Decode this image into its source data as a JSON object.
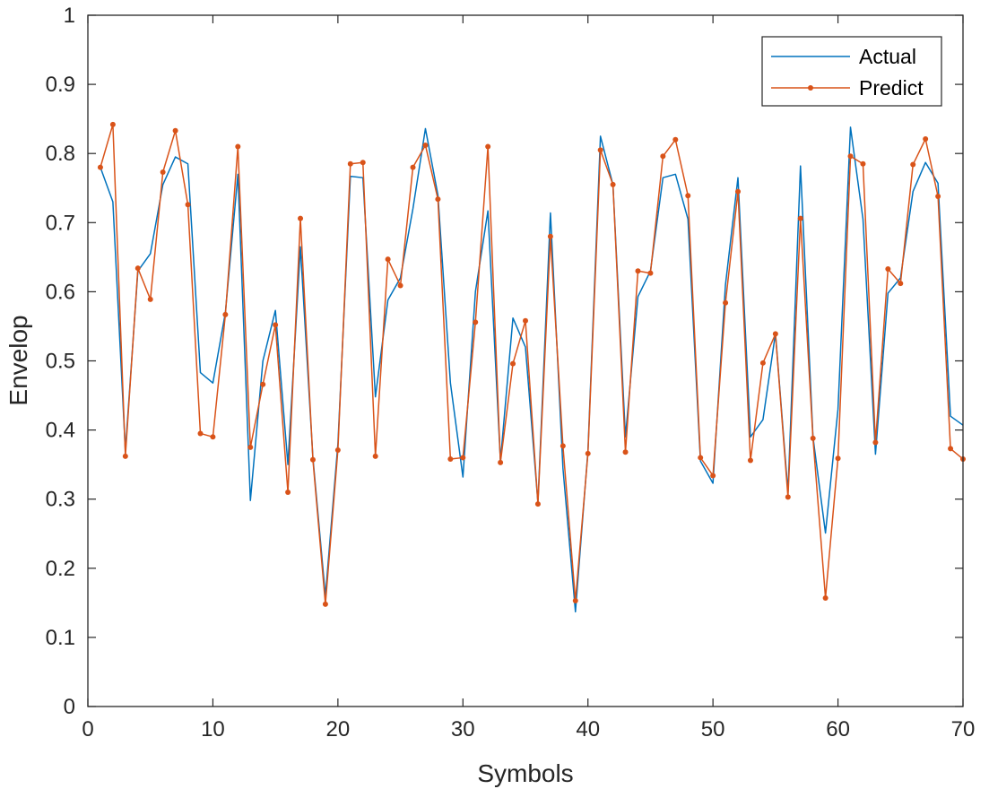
{
  "chart_data": {
    "type": "line",
    "title": "",
    "xlabel": "Symbols",
    "ylabel": "Envelop",
    "xlim": [
      0,
      70
    ],
    "ylim": [
      0,
      1
    ],
    "xticks": [
      0,
      10,
      20,
      30,
      40,
      50,
      60,
      70
    ],
    "yticks": [
      0,
      0.1,
      0.2,
      0.3,
      0.4,
      0.5,
      0.6,
      0.7,
      0.8,
      0.9,
      1
    ],
    "grid": false,
    "box": true,
    "legend_position": "top-right",
    "x": [
      1,
      2,
      3,
      4,
      5,
      6,
      7,
      8,
      9,
      10,
      11,
      12,
      13,
      14,
      15,
      16,
      17,
      18,
      19,
      20,
      21,
      22,
      23,
      24,
      25,
      26,
      27,
      28,
      29,
      30,
      31,
      32,
      33,
      34,
      35,
      36,
      37,
      38,
      39,
      40,
      41,
      42,
      43,
      44,
      45,
      46,
      47,
      48,
      49,
      50,
      51,
      52,
      53,
      54,
      55,
      56,
      57,
      58,
      59,
      60,
      61,
      62,
      63,
      64,
      65,
      66,
      67,
      68,
      69,
      70
    ],
    "series": [
      {
        "name": "Actual",
        "color": "#0072BD",
        "marker": false,
        "values": [
          0.78,
          0.73,
          0.37,
          0.63,
          0.655,
          0.755,
          0.795,
          0.785,
          0.483,
          0.468,
          0.57,
          0.77,
          0.298,
          0.5,
          0.573,
          0.35,
          0.665,
          0.36,
          0.16,
          0.38,
          0.767,
          0.765,
          0.448,
          0.588,
          0.62,
          0.72,
          0.836,
          0.74,
          0.468,
          0.332,
          0.6,
          0.717,
          0.355,
          0.562,
          0.52,
          0.295,
          0.714,
          0.345,
          0.137,
          0.37,
          0.825,
          0.755,
          0.39,
          0.593,
          0.63,
          0.765,
          0.77,
          0.705,
          0.355,
          0.323,
          0.61,
          0.765,
          0.39,
          0.415,
          0.54,
          0.31,
          0.782,
          0.39,
          0.251,
          0.43,
          0.838,
          0.705,
          0.365,
          0.598,
          0.62,
          0.745,
          0.787,
          0.757,
          0.42,
          0.407
        ]
      },
      {
        "name": "Predict",
        "color": "#D95319",
        "marker": true,
        "values": [
          0.78,
          0.842,
          0.362,
          0.634,
          0.589,
          0.773,
          0.833,
          0.726,
          0.395,
          0.39,
          0.567,
          0.81,
          0.375,
          0.466,
          0.552,
          0.31,
          0.706,
          0.357,
          0.148,
          0.371,
          0.785,
          0.787,
          0.362,
          0.647,
          0.609,
          0.78,
          0.812,
          0.734,
          0.358,
          0.36,
          0.556,
          0.81,
          0.353,
          0.496,
          0.558,
          0.293,
          0.68,
          0.377,
          0.153,
          0.366,
          0.805,
          0.755,
          0.368,
          0.63,
          0.627,
          0.796,
          0.82,
          0.739,
          0.36,
          0.334,
          0.584,
          0.745,
          0.356,
          0.497,
          0.539,
          0.303,
          0.706,
          0.388,
          0.157,
          0.359,
          0.796,
          0.785,
          0.382,
          0.633,
          0.612,
          0.784,
          0.821,
          0.738,
          0.373,
          0.358
        ]
      }
    ]
  }
}
